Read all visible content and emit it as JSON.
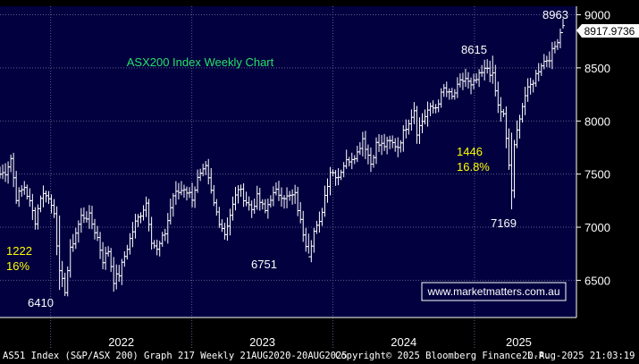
{
  "chart_data": {
    "type": "bar",
    "subtype": "ohlc",
    "title": "ASX200 Index Weekly Chart",
    "xlabel": "",
    "ylabel": "",
    "x_tick_labels": [
      "2022",
      "2023",
      "2024",
      "2025"
    ],
    "y_ticks": [
      6500,
      7000,
      7500,
      8000,
      8500,
      9000
    ],
    "ylim": [
      6150,
      9080
    ],
    "grid": true,
    "last_price_label": "8917.9736",
    "annotations": [
      {
        "label": "1222",
        "color": "#ffff00"
      },
      {
        "label": "16%",
        "color": "#ffff00"
      },
      {
        "label": "6410",
        "color": "#ffffff"
      },
      {
        "label": "6751",
        "color": "#ffffff"
      },
      {
        "label": "8615",
        "color": "#ffffff"
      },
      {
        "label": "1446",
        "color": "#ffff00"
      },
      {
        "label": "16.8%",
        "color": "#ffff00"
      },
      {
        "label": "7169",
        "color": "#ffffff"
      },
      {
        "label": "8963",
        "color": "#ffffff"
      }
    ],
    "watermark": "www.marketmatters.com.au",
    "series": [
      {
        "x_start": "2021-08-23",
        "x_end": "2025-08-18",
        "anchors": [
          [
            "2021-08-23",
            7500
          ],
          [
            "2021-09-06",
            7520
          ],
          [
            "2021-09-20",
            7650
          ],
          [
            "2021-10-04",
            7280
          ],
          [
            "2021-10-25",
            7380
          ],
          [
            "2021-11-08",
            7230
          ],
          [
            "2021-11-22",
            7060
          ],
          [
            "2021-12-06",
            7290
          ],
          [
            "2021-12-20",
            7320
          ],
          [
            "2022-01-10",
            7150
          ],
          [
            "2022-01-24",
            6560
          ],
          [
            "2022-02-07",
            6410
          ],
          [
            "2022-02-21",
            6780
          ],
          [
            "2022-03-07",
            6950
          ],
          [
            "2022-03-21",
            7100
          ],
          [
            "2022-04-11",
            7100
          ],
          [
            "2022-05-02",
            6900
          ],
          [
            "2022-05-16",
            6690
          ],
          [
            "2022-05-30",
            6780
          ],
          [
            "2022-06-13",
            6500
          ],
          [
            "2022-06-27",
            6560
          ],
          [
            "2022-07-18",
            6810
          ],
          [
            "2022-08-08",
            7040
          ],
          [
            "2022-08-22",
            7130
          ],
          [
            "2022-09-05",
            7230
          ],
          [
            "2022-09-19",
            6880
          ],
          [
            "2022-10-03",
            6780
          ],
          [
            "2022-10-24",
            6950
          ],
          [
            "2022-11-14",
            7300
          ],
          [
            "2022-11-28",
            7330
          ],
          [
            "2022-12-12",
            7370
          ],
          [
            "2023-01-02",
            7280
          ],
          [
            "2023-01-16",
            7450
          ],
          [
            "2023-02-06",
            7550
          ],
          [
            "2023-02-27",
            7220
          ],
          [
            "2023-03-13",
            7060
          ],
          [
            "2023-03-27",
            6940
          ],
          [
            "2023-04-10",
            7120
          ],
          [
            "2023-05-01",
            7370
          ],
          [
            "2023-05-22",
            7240
          ],
          [
            "2023-06-05",
            7170
          ],
          [
            "2023-06-19",
            7280
          ],
          [
            "2023-07-10",
            7150
          ],
          [
            "2023-07-24",
            7280
          ],
          [
            "2023-08-07",
            7330
          ],
          [
            "2023-09-04",
            7280
          ],
          [
            "2023-09-25",
            7300
          ],
          [
            "2023-10-09",
            7050
          ],
          [
            "2023-10-30",
            6751
          ],
          [
            "2023-11-13",
            6960
          ],
          [
            "2023-11-27",
            7030
          ],
          [
            "2023-12-11",
            7300
          ],
          [
            "2023-12-25",
            7530
          ],
          [
            "2024-01-15",
            7480
          ],
          [
            "2024-01-29",
            7590
          ],
          [
            "2024-02-12",
            7640
          ],
          [
            "2024-03-04",
            7700
          ],
          [
            "2024-03-18",
            7840
          ],
          [
            "2024-04-08",
            7600
          ],
          [
            "2024-04-22",
            7780
          ],
          [
            "2024-05-13",
            7770
          ],
          [
            "2024-05-27",
            7800
          ],
          [
            "2024-06-17",
            7760
          ],
          [
            "2024-07-08",
            7950
          ],
          [
            "2024-07-29",
            8110
          ],
          [
            "2024-08-05",
            7900
          ],
          [
            "2024-08-19",
            8000
          ],
          [
            "2024-09-02",
            8100
          ],
          [
            "2024-09-23",
            8130
          ],
          [
            "2024-10-14",
            8300
          ],
          [
            "2024-11-04",
            8220
          ],
          [
            "2024-11-25",
            8360
          ],
          [
            "2024-12-09",
            8400
          ],
          [
            "2024-12-23",
            8320
          ],
          [
            "2025-01-13",
            8420
          ],
          [
            "2025-02-03",
            8500
          ],
          [
            "2025-02-17",
            8420
          ],
          [
            "2025-03-03",
            8140
          ],
          [
            "2025-03-17",
            8050
          ],
          [
            "2025-04-07",
            7350
          ],
          [
            "2025-04-14",
            7750
          ],
          [
            "2025-04-28",
            8050
          ],
          [
            "2025-05-12",
            8240
          ],
          [
            "2025-06-02",
            8380
          ],
          [
            "2025-06-23",
            8540
          ],
          [
            "2025-07-14",
            8600
          ],
          [
            "2025-07-28",
            8700
          ],
          [
            "2025-08-11",
            8840
          ],
          [
            "2025-08-18",
            8920
          ]
        ],
        "marked_extremes": [
          {
            "week": "2022-01-24",
            "high": 7110,
            "low": 6410
          },
          {
            "week": "2023-10-30",
            "high": 6940,
            "low": 6751
          },
          {
            "week": "2025-02-17",
            "high": 8615,
            "low": 8350
          },
          {
            "week": "2025-04-07",
            "high": 7890,
            "low": 7169
          },
          {
            "week": "2025-08-18",
            "high": 8963,
            "low": 8870
          }
        ]
      }
    ]
  },
  "footer": {
    "left": "AS51 Index (S&P/ASX 200) Graph 217  Weekly 21AUG2020-20AUG2025",
    "center": "Copyright© 2025 Bloomberg Finance L.P.",
    "right": "20-Aug-2025 21:03:19"
  },
  "colors": {
    "background": "#000000",
    "plot_background": "#02003f",
    "grid": "#5c5c8c",
    "bars": "#ffffff",
    "title": "#27e06a",
    "highlight": "#ffff00",
    "watermark_border": "#ffffff",
    "watermark_text": "#ffffff"
  }
}
